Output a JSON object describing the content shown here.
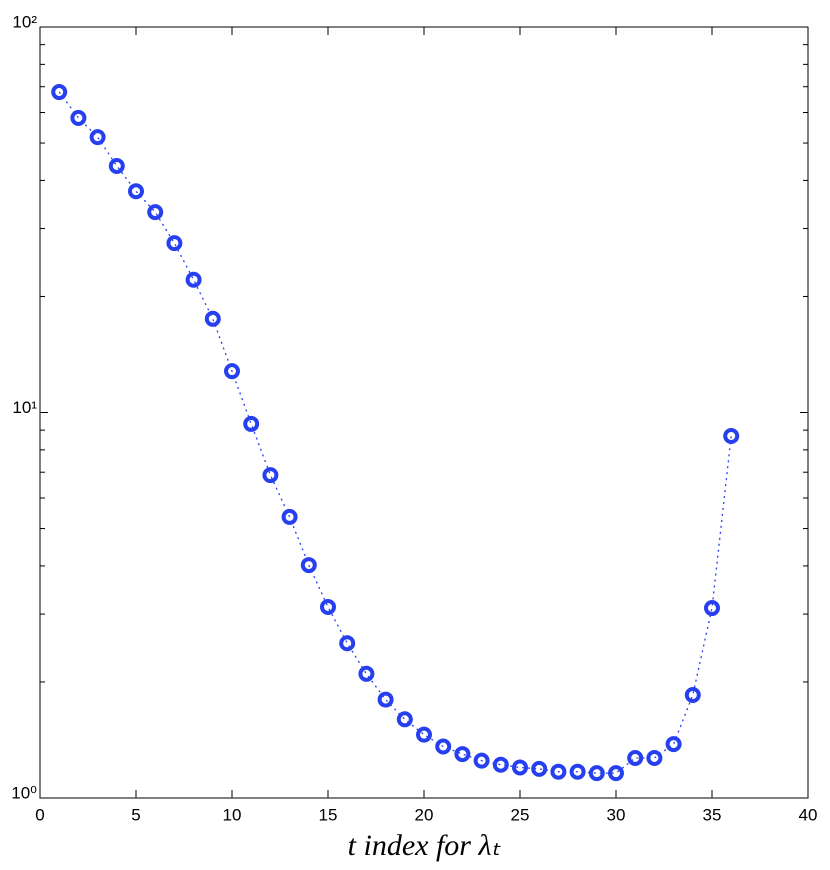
{
  "chart_data": {
    "type": "scatter",
    "xlabel": "t index for λₜ",
    "x": [
      1,
      2,
      3,
      4,
      5,
      6,
      7,
      8,
      9,
      10,
      11,
      12,
      13,
      14,
      15,
      16,
      17,
      18,
      19,
      20,
      21,
      22,
      23,
      24,
      25,
      26,
      27,
      28,
      29,
      30,
      31,
      32,
      33,
      34,
      35,
      36
    ],
    "series": [
      {
        "color": "#2640f0",
        "values": [
          67.8,
          58.1,
          51.8,
          43.6,
          37.5,
          33.1,
          27.5,
          22.1,
          17.5,
          12.8,
          9.34,
          6.88,
          5.36,
          4.02,
          3.13,
          2.52,
          2.1,
          1.8,
          1.6,
          1.46,
          1.36,
          1.3,
          1.25,
          1.22,
          1.2,
          1.19,
          1.17,
          1.17,
          1.16,
          1.16,
          1.27,
          1.27,
          1.38,
          1.85,
          3.11,
          8.69
        ]
      }
    ],
    "xlim": [
      0,
      40
    ],
    "xticks": [
      0,
      5,
      10,
      15,
      20,
      25,
      30,
      35,
      40
    ],
    "ylim": [
      1,
      100
    ],
    "ylog": true,
    "yticks": [
      {
        "value": 1,
        "label": "10⁰"
      },
      {
        "value": 10,
        "label": "10¹"
      },
      {
        "value": 100,
        "label": "10²"
      }
    ],
    "yminorticks": [
      2,
      3,
      4,
      5,
      6,
      7,
      8,
      9,
      20,
      30,
      40,
      50,
      60,
      70,
      80,
      90
    ],
    "line_style": "dotted"
  }
}
